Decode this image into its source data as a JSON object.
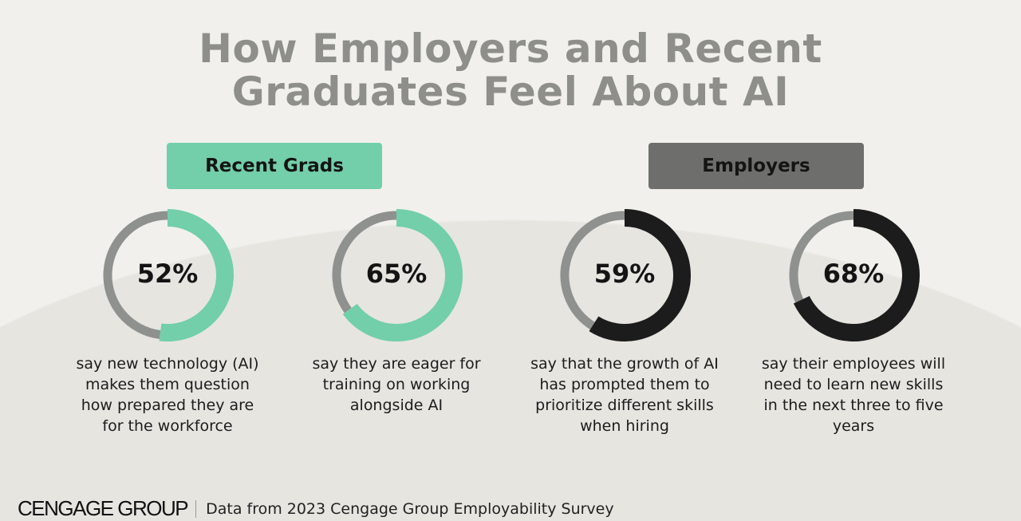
{
  "title_line1": "How Employers and Recent",
  "title_line2": "Graduates Feel About AI",
  "groups": [
    {
      "label": "Recent Grads",
      "color": "#72cfa9"
    },
    {
      "label": "Employers",
      "color": "#6e6e6d"
    }
  ],
  "chart_data": {
    "type": "pie",
    "variant": "donut",
    "colors": {
      "recent_grads": "#72cfa9",
      "employers": "#1c1c1c",
      "remainder": "#8f918f"
    },
    "items": [
      {
        "group": "Recent Grads",
        "value": 52,
        "label": "52%",
        "description": "say new technology (AI) makes them question how prepared they are for the workforce"
      },
      {
        "group": "Recent Grads",
        "value": 65,
        "label": "65%",
        "description": "say they are eager for training on working alongside AI"
      },
      {
        "group": "Employers",
        "value": 59,
        "label": "59%",
        "description": "say that the growth of AI has prompted them to prioritize different skills when hiring"
      },
      {
        "group": "Employers",
        "value": 68,
        "label": "68%",
        "description": "say their employees will need to learn new skills in the next three to five years"
      }
    ]
  },
  "footer": {
    "logo": "CENGAGE GROUP",
    "source": "Data from 2023 Cengage Group Employability Survey"
  }
}
